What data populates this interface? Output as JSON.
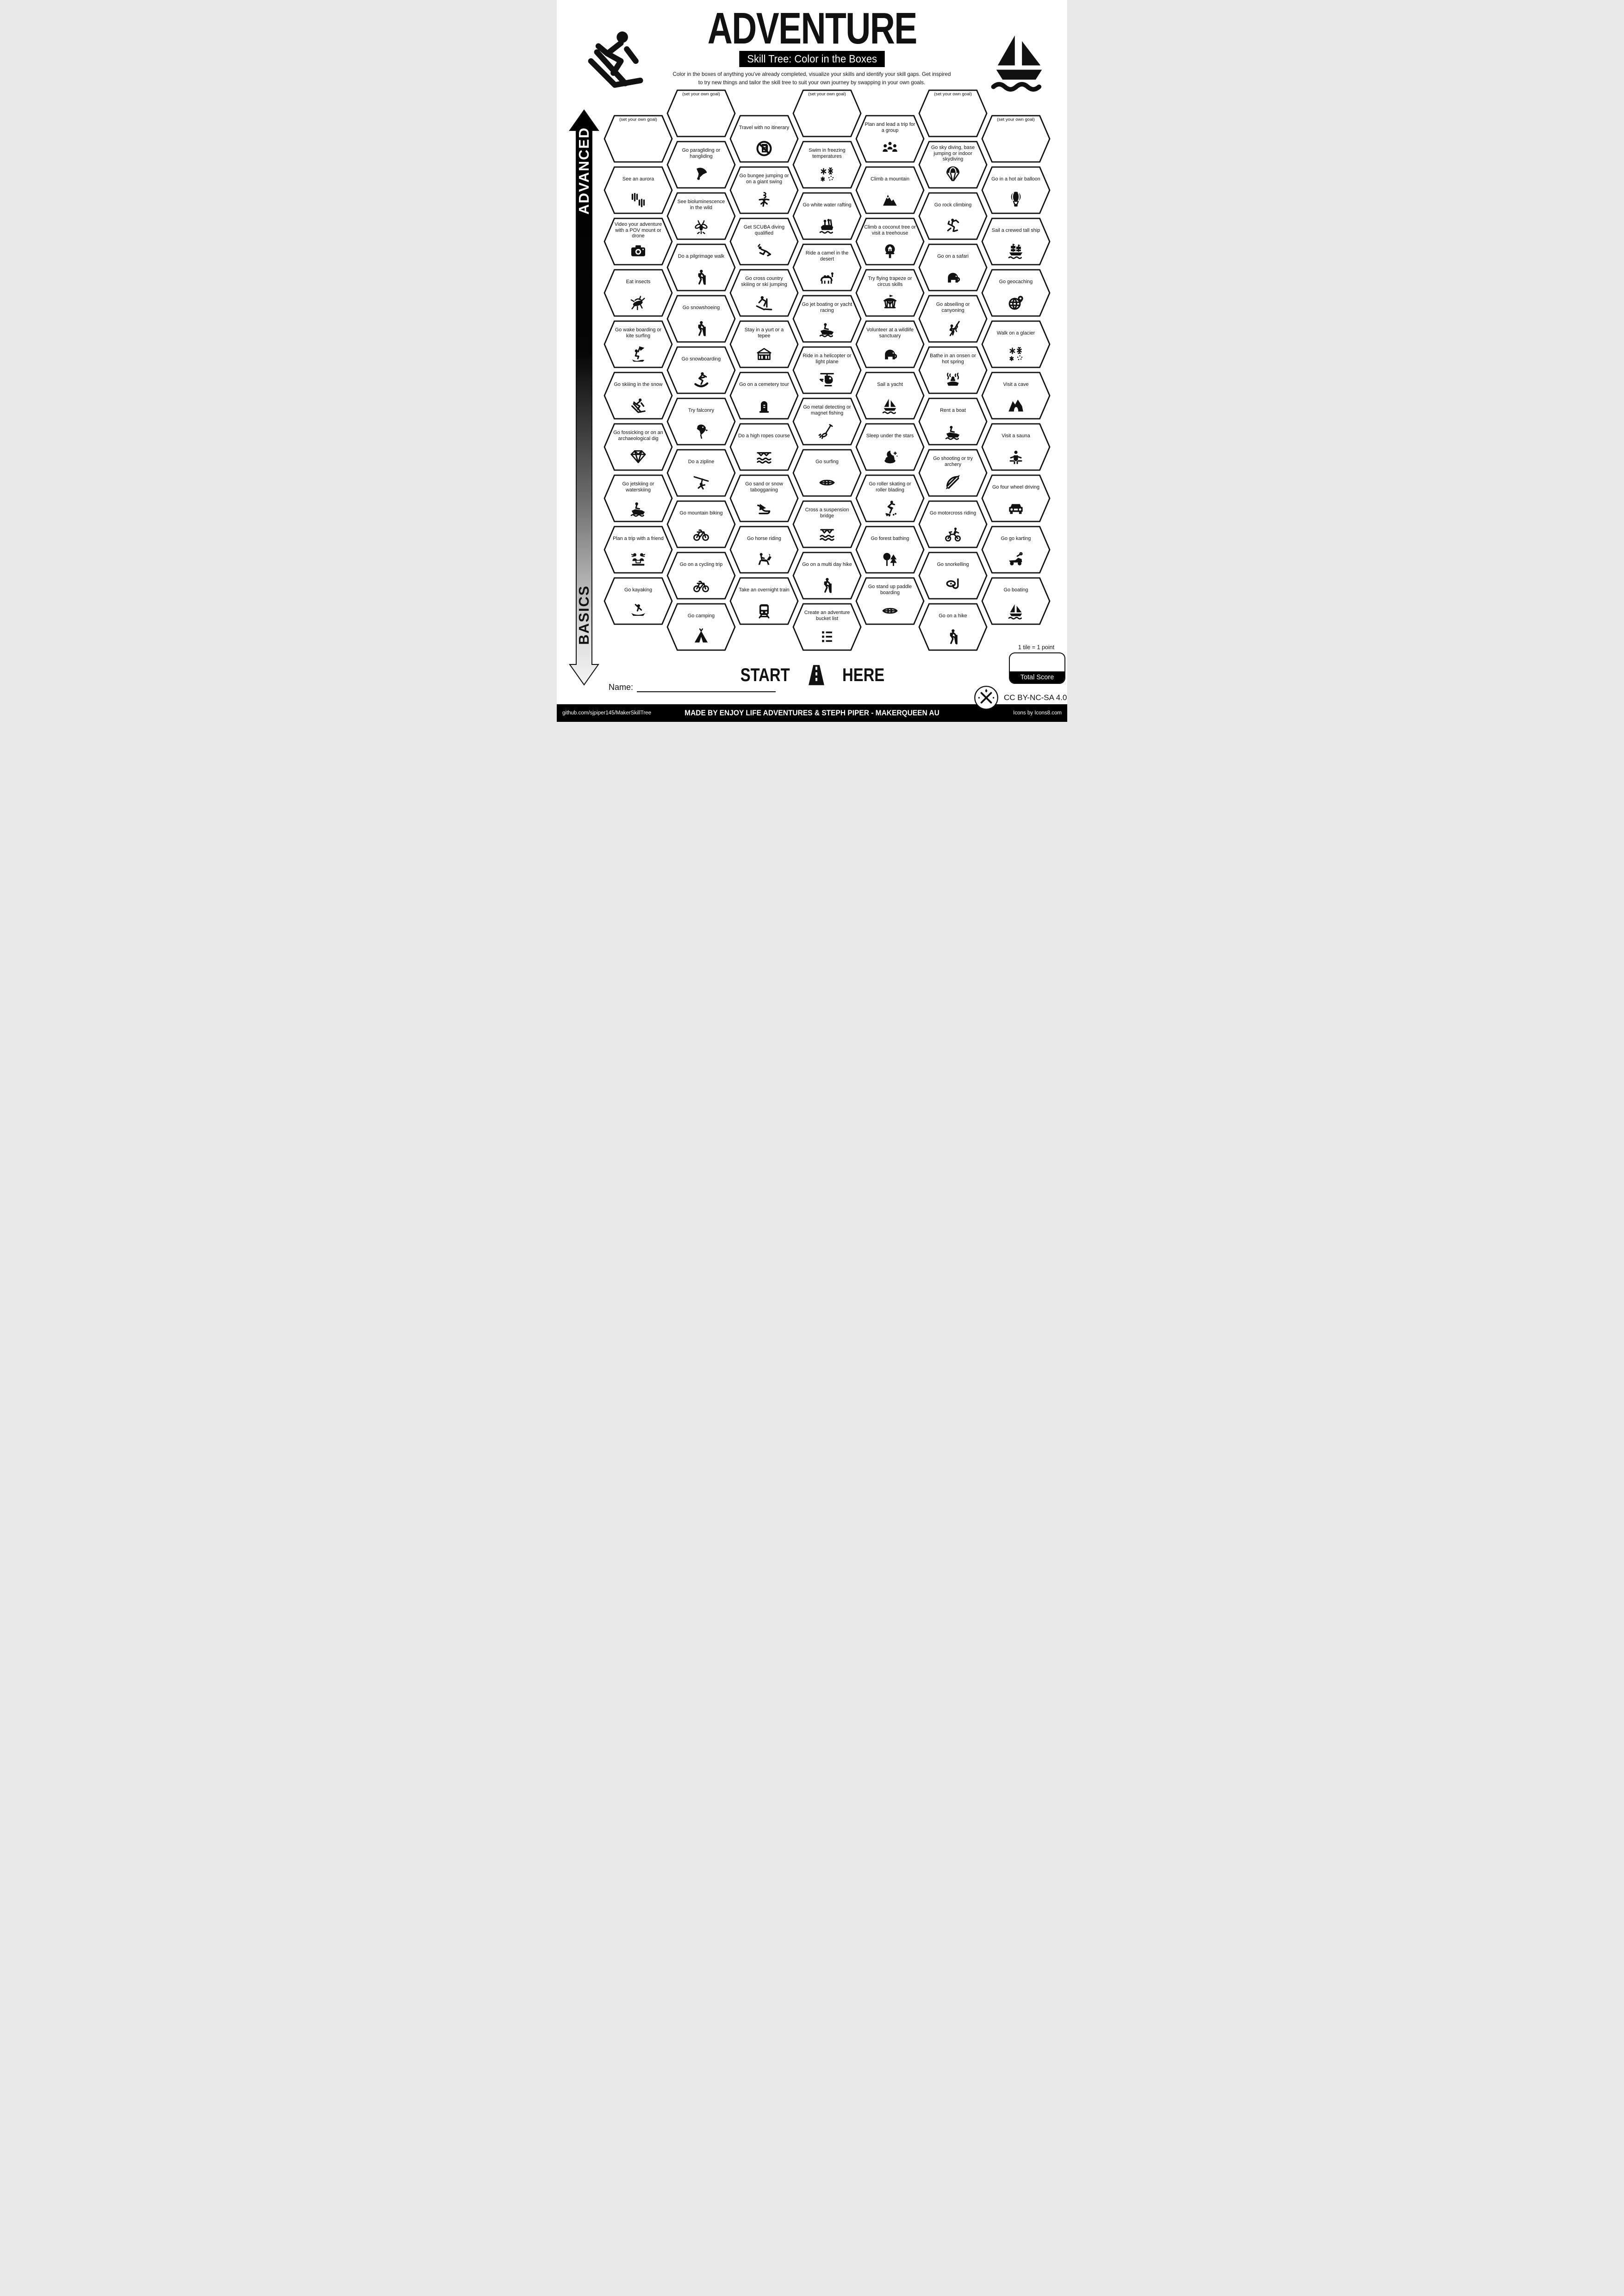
{
  "header": {
    "title": "ADVENTURE",
    "subtitle": "Skill Tree: Color in the Boxes",
    "description_line1": "Color in the boxes of anything you've already completed, visualize your skills and identify your skill gaps.  Get inspired",
    "description_line2": "to try new things and tailor the skill tree to suit your own journey by swapping in your own goals."
  },
  "axis": {
    "top_label": "ADVANCED",
    "bottom_label": "BASICS"
  },
  "start_marker": {
    "start_label": "START",
    "here_label": "HERE"
  },
  "scoring": {
    "tile_note": "1 tile = 1 point",
    "total_label": "Total Score"
  },
  "name_field": {
    "label": "Name:"
  },
  "license": {
    "text": "CC BY-NC-SA 4.0"
  },
  "footer": {
    "left": "github.com/sjpiper145/MakerSkillTree",
    "center": "MADE BY ENJOY LIFE ADVENTURES & STEPH PIPER  -  MAKERQUEEN AU",
    "right": "Icons by Icons8.com"
  },
  "decor": {
    "top_left": "skier-icon",
    "top_right": "sailboat-icon"
  },
  "columns": [
    {
      "tiles": [
        {
          "label": "(set your own goal)",
          "goal": true
        },
        {
          "label": "See an aurora",
          "icon": "aurora-icon"
        },
        {
          "label": "Video your adventure with a POV mount or drone",
          "icon": "camera-icon"
        },
        {
          "label": "Eat insects",
          "icon": "grasshopper-icon"
        },
        {
          "label": "Go wake boarding or kite surfing",
          "icon": "kitesurf-icon"
        },
        {
          "label": "Go skiiing in the snow",
          "icon": "skier-icon"
        },
        {
          "label": "Go fossicking or on an archaeological dig",
          "icon": "gem-icon"
        },
        {
          "label": "Go jetskiing or waterskiing",
          "icon": "jetski-icon"
        },
        {
          "label": "Plan a trip with a friend",
          "icon": "friends-planning-icon"
        },
        {
          "label": "Go kayaking",
          "icon": "kayak-icon"
        }
      ]
    },
    {
      "tiles": [
        {
          "label": "(set your own goal)",
          "goal": true
        },
        {
          "label": "Go paragliding or hangliding",
          "icon": "paraglider-icon"
        },
        {
          "label": "See bioluminescence in the wild",
          "icon": "firefly-icon"
        },
        {
          "label": "Do a pilgrimage walk",
          "icon": "hiker-icon"
        },
        {
          "label": "Go snowshoeing",
          "icon": "snowshoe-hiker-icon"
        },
        {
          "label": "Go snowboarding",
          "icon": "snowboarder-icon"
        },
        {
          "label": "Try falconry",
          "icon": "falcon-icon"
        },
        {
          "label": "Do a zipline",
          "icon": "zipline-icon"
        },
        {
          "label": "Go mountain biking",
          "icon": "bicycle-icon"
        },
        {
          "label": "Go on a cycling trip",
          "icon": "cycling-icon"
        },
        {
          "label": "Go camping",
          "icon": "tent-icon"
        }
      ]
    },
    {
      "tiles": [
        {
          "label": "Travel with no itinerary",
          "icon": "no-itinerary-icon"
        },
        {
          "label": "Go bungee jumping or on a giant swing",
          "icon": "bungee-icon"
        },
        {
          "label": "Get SCUBA diving qualified",
          "icon": "scuba-icon"
        },
        {
          "label": "Go cross country skiiing or ski jumping",
          "icon": "xc-ski-icon"
        },
        {
          "label": "Stay in a yurt or a tepee",
          "icon": "yurt-icon"
        },
        {
          "label": "Go on a cemetery tour",
          "icon": "tombstone-icon"
        },
        {
          "label": "Do a high ropes course",
          "icon": "ropes-course-icon"
        },
        {
          "label": "Go sand  or snow tabogganing",
          "icon": "sled-icon"
        },
        {
          "label": "Go horse riding",
          "icon": "horse-icon"
        },
        {
          "label": "Take an overnight train",
          "icon": "train-icon"
        }
      ]
    },
    {
      "tiles": [
        {
          "label": "(set your own goal)",
          "goal": true
        },
        {
          "label": "Swim in freezing temperatures",
          "icon": "snowflakes-icon"
        },
        {
          "label": "Go white water rafting",
          "icon": "raft-icon"
        },
        {
          "label": "Ride a camel in the desert",
          "icon": "camel-icon"
        },
        {
          "label": "Go jet boating or yacht racing",
          "icon": "jetboat-icon"
        },
        {
          "label": "Ride in a helicopter or light plane",
          "icon": "helicopter-icon"
        },
        {
          "label": "Go metal detecting or magnet fishing",
          "icon": "metal-detector-icon"
        },
        {
          "label": "Go surfing",
          "icon": "surfboard-icon"
        },
        {
          "label": "Cross a suspension bridge",
          "icon": "suspension-bridge-icon"
        },
        {
          "label": "Go on a multi day hike",
          "icon": "hiker-icon"
        },
        {
          "label": "Create an adventure bucket list",
          "icon": "checklist-icon"
        }
      ]
    },
    {
      "tiles": [
        {
          "label": "Plan and lead a trip for a group",
          "icon": "group-icon"
        },
        {
          "label": "Climb a mountain",
          "icon": "mountain-icon"
        },
        {
          "label": "Climb a coconut tree or visit a treehouse",
          "icon": "treehouse-icon"
        },
        {
          "label": "Try flying trapeze or circus skills",
          "icon": "circus-tent-icon"
        },
        {
          "label": "Volunteer at a wildlife sanctuary",
          "icon": "elephant-icon"
        },
        {
          "label": "Sail a yacht",
          "icon": "sailboat-icon"
        },
        {
          "label": "Sleep under the stars",
          "icon": "night-sky-icon"
        },
        {
          "label": "Go roller skating or roller blading",
          "icon": "rollerblade-icon"
        },
        {
          "label": "Go forest bathing",
          "icon": "forest-icon"
        },
        {
          "label": "Go stand up paddle boarding",
          "icon": "paddleboard-icon"
        }
      ]
    },
    {
      "tiles": [
        {
          "label": "(set your own goal)",
          "goal": true
        },
        {
          "label": "Go sky diving, base jumping or indoor skydiving",
          "icon": "parachute-icon"
        },
        {
          "label": "Go rock climbing",
          "icon": "climber-icon"
        },
        {
          "label": "Go on a safari",
          "icon": "elephant-icon"
        },
        {
          "label": "Go abseiling or canyoning",
          "icon": "abseil-icon"
        },
        {
          "label": "Bathe in an onsen or hot spring",
          "icon": "onsen-icon"
        },
        {
          "label": "Rent a boat",
          "icon": "rowboat-icon"
        },
        {
          "label": "Go shooting or try archery",
          "icon": "archery-icon"
        },
        {
          "label": "Go motorcross riding",
          "icon": "motocross-icon"
        },
        {
          "label": "Go snorkelling",
          "icon": "snorkel-icon"
        },
        {
          "label": "Go on a hike",
          "icon": "hiker-icon"
        }
      ]
    },
    {
      "tiles": [
        {
          "label": "(set your own goal)",
          "goal": true
        },
        {
          "label": "Go in a hot air balloon",
          "icon": "hot-air-balloon-icon"
        },
        {
          "label": "Sail a crewed tall ship",
          "icon": "tall-ship-icon"
        },
        {
          "label": "Go geocaching",
          "icon": "geocache-icon"
        },
        {
          "label": "Walk on a glacier",
          "icon": "snowflakes-icon"
        },
        {
          "label": "Visit a cave",
          "icon": "cave-icon"
        },
        {
          "label": "Visit a sauna",
          "icon": "sauna-icon"
        },
        {
          "label": "Go four wheel driving",
          "icon": "4wd-icon"
        },
        {
          "label": "Go go karting",
          "icon": "go-kart-icon"
        },
        {
          "label": "Go boating",
          "icon": "sailboat-icon"
        }
      ]
    }
  ]
}
